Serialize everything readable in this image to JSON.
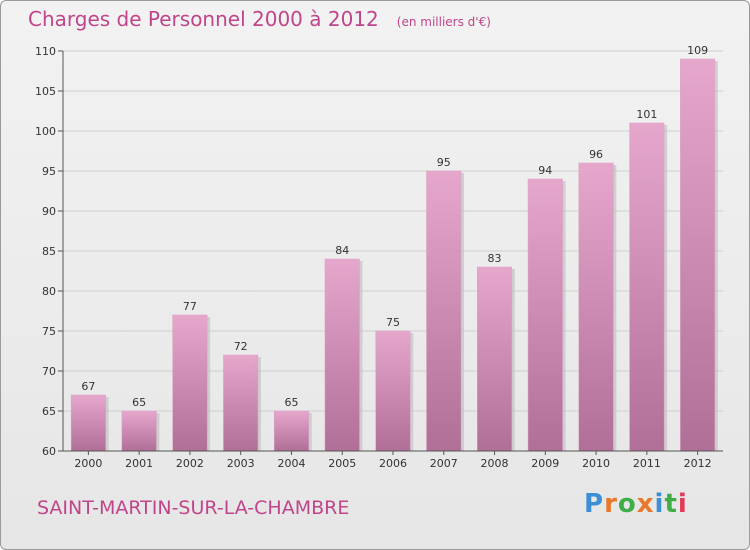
{
  "header": {
    "title": "Charges de Personnel 2000 à 2012",
    "unit": "(en milliers d'€)"
  },
  "footer": {
    "commune": "SAINT-MARTIN-SUR-LA-CHAMBRE",
    "logo_letters": [
      "P",
      "r",
      "o",
      "x",
      "i",
      "t",
      "i"
    ]
  },
  "colors": {
    "title": "#c0458a",
    "bar_light": "#e6a7cd",
    "bar_dark": "#b06f97",
    "logo": [
      "#3b8fd4",
      "#e8782a",
      "#3fae49",
      "#e8782a",
      "#3b8fd4",
      "#3fae49",
      "#e23b5a"
    ]
  },
  "chart_data": {
    "type": "bar",
    "title": "Charges de Personnel 2000 à 2012",
    "subtitle": "(en milliers d'€)",
    "categories": [
      "2000",
      "2001",
      "2002",
      "2003",
      "2004",
      "2005",
      "2006",
      "2007",
      "2008",
      "2009",
      "2010",
      "2011",
      "2012"
    ],
    "values": [
      67,
      65,
      77,
      72,
      65,
      84,
      75,
      95,
      83,
      94,
      96,
      101,
      109
    ],
    "ylim": [
      60,
      110
    ],
    "yticks": [
      60,
      65,
      70,
      75,
      80,
      85,
      90,
      95,
      100,
      105,
      110
    ],
    "grid": true,
    "data_labels": true
  }
}
